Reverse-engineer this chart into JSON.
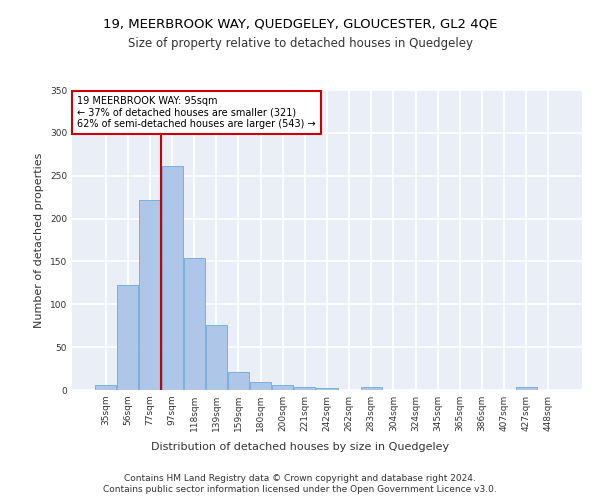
{
  "title1": "19, MEERBROOK WAY, QUEDGELEY, GLOUCESTER, GL2 4QE",
  "title2": "Size of property relative to detached houses in Quedgeley",
  "xlabel": "Distribution of detached houses by size in Quedgeley",
  "ylabel": "Number of detached properties",
  "footer1": "Contains HM Land Registry data © Crown copyright and database right 2024.",
  "footer2": "Contains public sector information licensed under the Open Government Licence v3.0.",
  "annotation_line1": "19 MEERBROOK WAY: 95sqm",
  "annotation_line2": "← 37% of detached houses are smaller (321)",
  "annotation_line3": "62% of semi-detached houses are larger (543) →",
  "bar_categories": [
    "35sqm",
    "56sqm",
    "77sqm",
    "97sqm",
    "118sqm",
    "139sqm",
    "159sqm",
    "180sqm",
    "200sqm",
    "221sqm",
    "242sqm",
    "262sqm",
    "283sqm",
    "304sqm",
    "324sqm",
    "345sqm",
    "365sqm",
    "386sqm",
    "407sqm",
    "427sqm",
    "448sqm"
  ],
  "bar_values": [
    6,
    123,
    222,
    261,
    154,
    76,
    21,
    9,
    6,
    4,
    2,
    0,
    3,
    0,
    0,
    0,
    0,
    0,
    0,
    3,
    0
  ],
  "bar_color": "#aec6e8",
  "bar_edge_color": "#5a9fd4",
  "vline_color": "#cc0000",
  "vline_x_index": 3,
  "ylim": [
    0,
    350
  ],
  "yticks": [
    0,
    50,
    100,
    150,
    200,
    250,
    300,
    350
  ],
  "bg_color": "#eaeff7",
  "grid_color": "#ffffff",
  "annotation_box_color": "#ffffff",
  "annotation_box_edge": "#cc0000",
  "title1_fontsize": 9.5,
  "title2_fontsize": 8.5,
  "xlabel_fontsize": 8,
  "ylabel_fontsize": 8,
  "footer_fontsize": 6.5,
  "annotation_fontsize": 7,
  "tick_fontsize": 6.5
}
